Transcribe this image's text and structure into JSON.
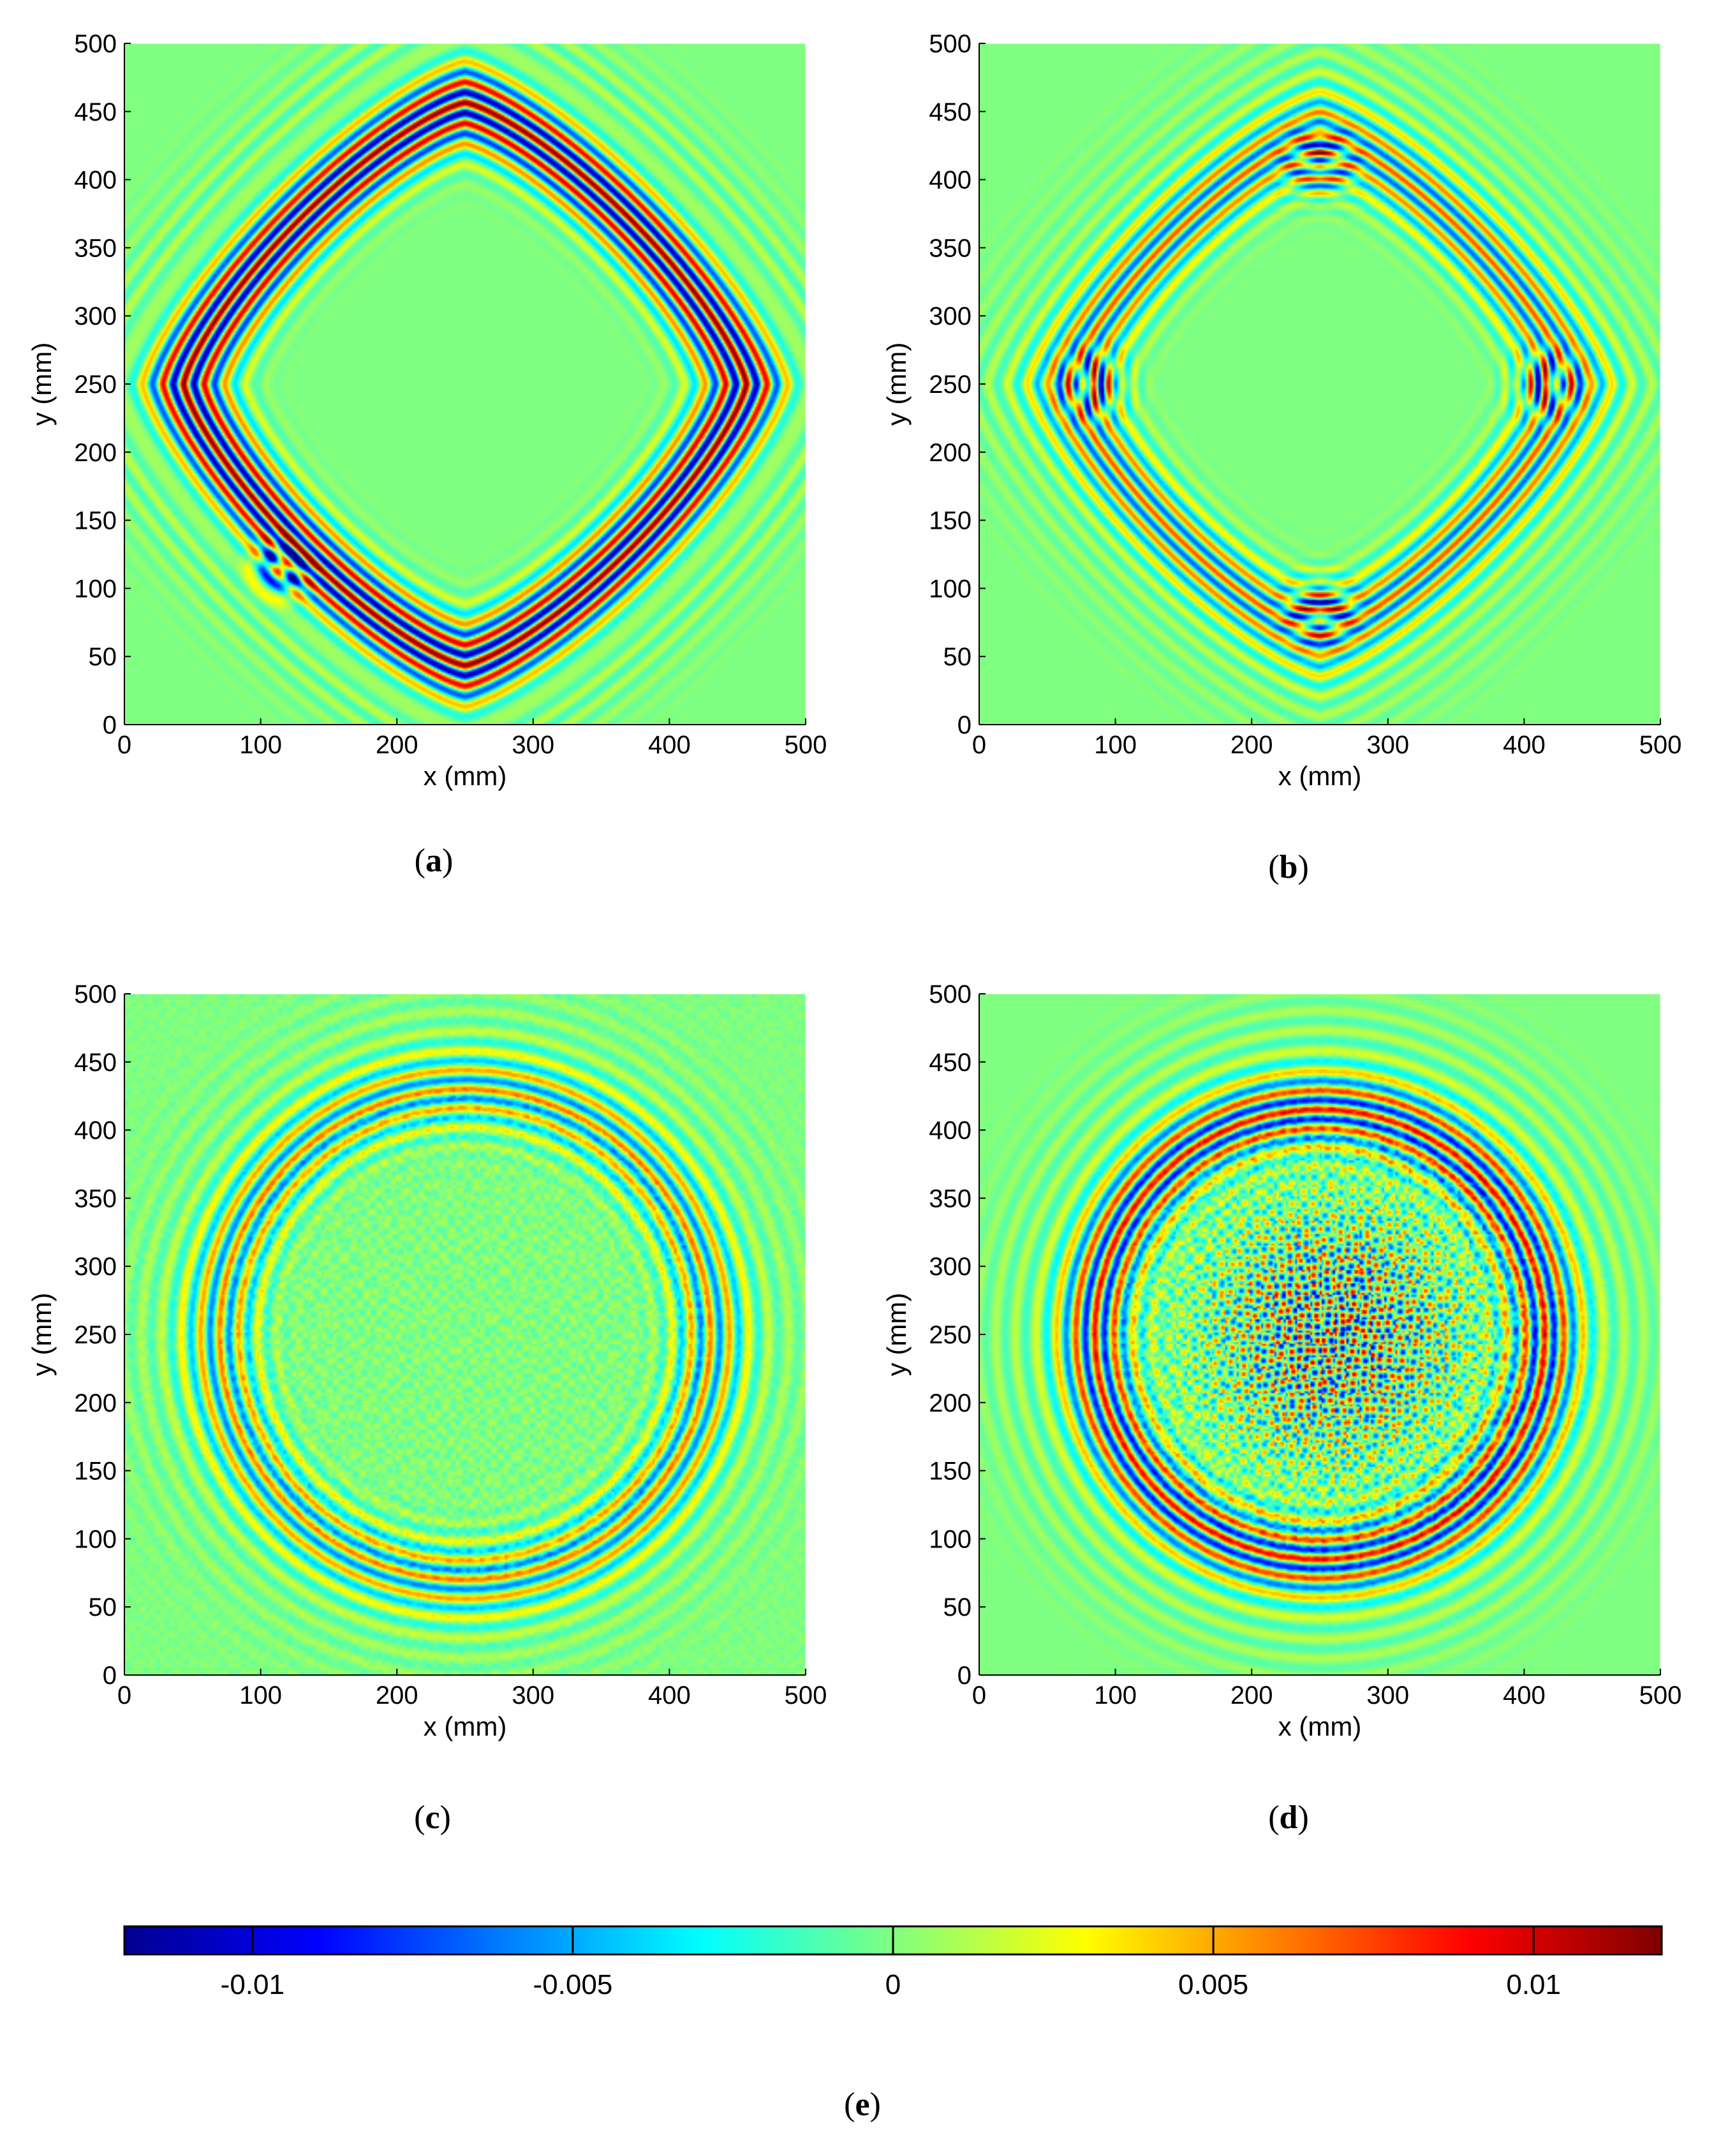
{
  "colormap": [
    "#00008f",
    "#0000ff",
    "#0080ff",
    "#00ffff",
    "#80ff80",
    "#ffff00",
    "#ff8000",
    "#ff0000",
    "#800000"
  ],
  "background_color": "#80ff80",
  "chart_data": [
    {
      "type": "heatmap",
      "panel": "a",
      "xlabel": "x (mm)",
      "ylabel": "y (mm)",
      "xlim": [
        0,
        500
      ],
      "ylim": [
        0,
        500
      ],
      "xticks": [
        0,
        100,
        200,
        300,
        400,
        500
      ],
      "yticks": [
        0,
        50,
        100,
        150,
        200,
        250,
        300,
        350,
        400,
        450,
        500
      ],
      "pattern": {
        "shape": "diamond",
        "center": [
          250,
          250
        ],
        "radius": 190,
        "amplitude": 0.012,
        "defect": [
          115,
          115
        ]
      }
    },
    {
      "type": "heatmap",
      "panel": "b",
      "xlabel": "x (mm)",
      "ylabel": "y (mm)",
      "xlim": [
        0,
        500
      ],
      "ylim": [
        0,
        500
      ],
      "xticks": [
        0,
        100,
        200,
        300,
        400,
        500
      ],
      "yticks": [
        0,
        50,
        100,
        150,
        200,
        250,
        300,
        350,
        400,
        450,
        500
      ],
      "pattern": {
        "shape": "diamond",
        "center": [
          250,
          250
        ],
        "radius": 170,
        "amplitude": 0.007,
        "hotspots": [
          [
            85,
            250
          ],
          [
            415,
            250
          ],
          [
            250,
            410
          ],
          [
            250,
            85
          ]
        ]
      }
    },
    {
      "type": "heatmap",
      "panel": "c",
      "xlabel": "x (mm)",
      "ylabel": "y (mm)",
      "xlim": [
        0,
        500
      ],
      "ylim": [
        0,
        500
      ],
      "xticks": [
        0,
        100,
        200,
        300,
        400,
        500
      ],
      "yticks": [
        0,
        50,
        100,
        150,
        200,
        250,
        300,
        350,
        400,
        450,
        500
      ],
      "pattern": {
        "shape": "circle",
        "center": [
          250,
          250
        ],
        "radius": 180,
        "amplitude": 0.006,
        "noise": 0.002
      }
    },
    {
      "type": "heatmap",
      "panel": "d",
      "xlabel": "x (mm)",
      "ylabel": "y (mm)",
      "xlim": [
        0,
        500
      ],
      "ylim": [
        0,
        500
      ],
      "xticks": [
        0,
        100,
        200,
        300,
        400,
        500
      ],
      "yticks": [
        0,
        50,
        100,
        150,
        200,
        250,
        300,
        350,
        400,
        450,
        500
      ],
      "pattern": {
        "shape": "circle",
        "center": [
          250,
          250
        ],
        "radius": 165,
        "amplitude": 0.009,
        "noise": 0.012,
        "noise_center": [
          260,
          250
        ]
      }
    }
  ],
  "colorbar": {
    "range": [
      -0.012,
      0.012
    ],
    "ticks": [
      -0.01,
      -0.005,
      0,
      0.005,
      0.01
    ],
    "tick_labels": [
      "-0.01",
      "-0.005",
      "0",
      "0.005",
      "0.01"
    ]
  },
  "captions": {
    "a": {
      "open": "(",
      "letter": "a",
      "close": ")"
    },
    "b": {
      "open": "(",
      "letter": "b",
      "close": ")"
    },
    "c": {
      "open": "(",
      "letter": "c",
      "close": ")"
    },
    "d": {
      "open": "(",
      "letter": "d",
      "close": ")"
    },
    "e": {
      "open": "(",
      "letter": "e",
      "close": ")"
    }
  }
}
